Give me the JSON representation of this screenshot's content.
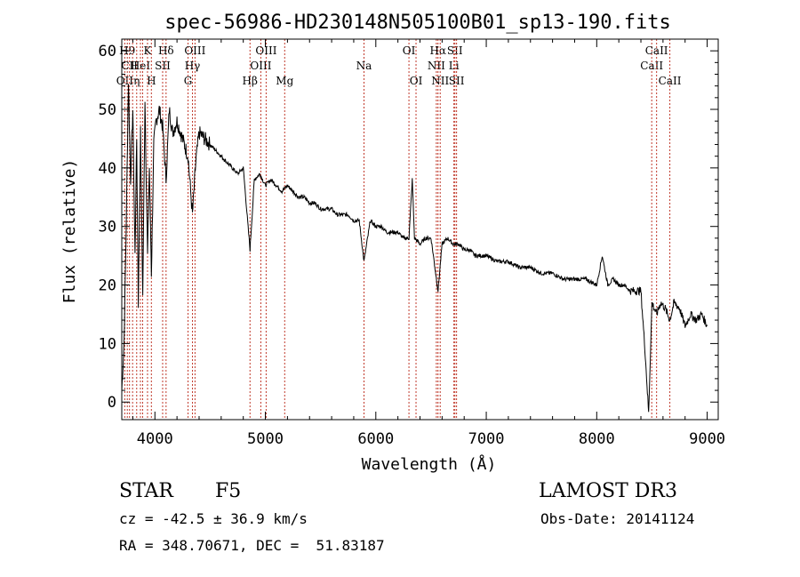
{
  "chart_data": {
    "type": "line",
    "title": "spec-56986-HD230148N505100B01_sp13-190.fits",
    "xlabel": "Wavelength (Å)",
    "ylabel": "Flux (relative)",
    "xlim": [
      3700,
      9100
    ],
    "ylim": [
      -3,
      62
    ],
    "xticks": [
      4000,
      5000,
      6000,
      7000,
      8000,
      9000
    ],
    "yticks": [
      0,
      10,
      20,
      30,
      40,
      50,
      60
    ],
    "grid": false,
    "series": [
      {
        "name": "flux",
        "color": "#000000",
        "x": [
          3700,
          3720,
          3740,
          3760,
          3780,
          3800,
          3820,
          3835,
          3850,
          3870,
          3890,
          3910,
          3933,
          3950,
          3968,
          3990,
          4010,
          4040,
          4070,
          4101,
          4130,
          4160,
          4200,
          4250,
          4300,
          4340,
          4370,
          4400,
          4450,
          4500,
          4550,
          4600,
          4650,
          4700,
          4750,
          4800,
          4861,
          4900,
          4950,
          5000,
          5050,
          5100,
          5150,
          5200,
          5250,
          5300,
          5350,
          5400,
          5450,
          5500,
          5550,
          5600,
          5650,
          5700,
          5750,
          5800,
          5850,
          5893,
          5950,
          6000,
          6050,
          6100,
          6150,
          6200,
          6250,
          6300,
          6330,
          6350,
          6400,
          6450,
          6500,
          6563,
          6600,
          6650,
          6700,
          6750,
          6800,
          6850,
          6900,
          6950,
          7000,
          7100,
          7200,
          7300,
          7400,
          7500,
          7600,
          7700,
          7800,
          7900,
          8000,
          8050,
          8100,
          8150,
          8200,
          8250,
          8300,
          8350,
          8400,
          8440,
          8470,
          8500,
          8542,
          8580,
          8620,
          8662,
          8700,
          8750,
          8800,
          8850,
          8900,
          8950,
          9000
        ],
        "values": [
          2,
          10,
          30,
          55,
          38,
          50,
          25,
          45,
          17,
          46,
          18,
          52,
          25,
          40,
          22,
          44,
          48,
          50,
          47,
          38,
          50,
          46,
          48,
          45,
          42,
          32,
          41,
          46,
          45,
          44,
          43,
          42,
          41,
          40,
          39,
          40,
          26,
          38,
          39,
          37,
          38,
          37,
          36,
          37,
          36,
          35,
          35,
          34,
          34,
          33,
          33,
          33,
          32,
          32,
          32,
          31,
          31,
          24,
          31,
          30,
          30,
          29,
          29,
          29,
          28,
          28,
          38,
          28,
          27,
          28,
          28,
          19,
          27,
          28,
          27,
          27,
          26,
          26,
          25,
          25,
          25,
          24,
          24,
          23,
          23,
          22,
          22,
          21,
          21,
          21,
          20,
          25,
          20,
          21,
          20,
          20,
          19,
          19,
          19,
          8,
          -2,
          17,
          15,
          17,
          16,
          14,
          17,
          16,
          13,
          15,
          14,
          15,
          13
        ]
      }
    ],
    "line_color": "#c0392b",
    "lines": [
      {
        "x": 3727,
        "label": "OII",
        "row": 3
      },
      {
        "x": 3750,
        "label": "H9",
        "row": 1
      },
      {
        "x": 3770,
        "label": "CII",
        "row": 2
      },
      {
        "x": 3798,
        "label": "",
        "row": 0
      },
      {
        "x": 3835,
        "label": "η",
        "row": 3
      },
      {
        "x": 3869,
        "label": "HeI",
        "row": 2
      },
      {
        "x": 3889,
        "label": "",
        "row": 0
      },
      {
        "x": 3933,
        "label": "K",
        "row": 1
      },
      {
        "x": 3968,
        "label": "H",
        "row": 3
      },
      {
        "x": 4070,
        "label": "SII",
        "row": 2
      },
      {
        "x": 4101,
        "label": "Hδ",
        "row": 1
      },
      {
        "x": 4300,
        "label": "G",
        "row": 3
      },
      {
        "x": 4340,
        "label": "Hγ",
        "row": 2
      },
      {
        "x": 4363,
        "label": "OIII",
        "row": 1
      },
      {
        "x": 4861,
        "label": "Hβ",
        "row": 3
      },
      {
        "x": 4959,
        "label": "OIII",
        "row": 2
      },
      {
        "x": 5007,
        "label": "OIII",
        "row": 1
      },
      {
        "x": 5175,
        "label": "Mg",
        "row": 3
      },
      {
        "x": 5893,
        "label": "Na",
        "row": 2
      },
      {
        "x": 6300,
        "label": "OI",
        "row": 1
      },
      {
        "x": 6364,
        "label": "OI",
        "row": 3
      },
      {
        "x": 6548,
        "label": "NII",
        "row": 2
      },
      {
        "x": 6563,
        "label": "Hα",
        "row": 1
      },
      {
        "x": 6583,
        "label": "NII",
        "row": 3
      },
      {
        "x": 6707,
        "label": "Li",
        "row": 2
      },
      {
        "x": 6716,
        "label": "SII",
        "row": 1
      },
      {
        "x": 6731,
        "label": "SII",
        "row": 3
      },
      {
        "x": 8498,
        "label": "CaII",
        "row": 2
      },
      {
        "x": 8542,
        "label": "CaII",
        "row": 1
      },
      {
        "x": 8662,
        "label": "CaII",
        "row": 3
      }
    ]
  },
  "info": {
    "object_class": "STAR",
    "subclass": "F5",
    "survey": "LAMOST DR3",
    "cz": "cz = -42.5 ± 36.9 km/s",
    "obs_date": "Obs-Date: 20141124",
    "coords": "RA = 348.70671, DEC =  51.83187"
  }
}
